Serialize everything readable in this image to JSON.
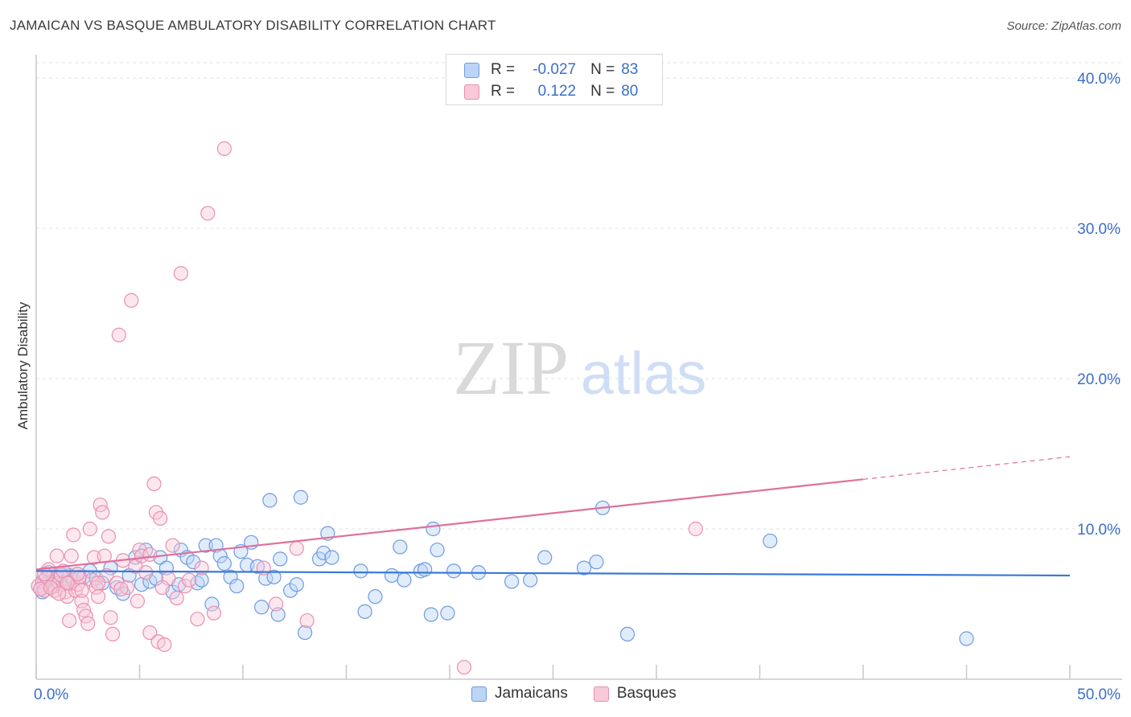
{
  "title": "JAMAICAN VS BASQUE AMBULATORY DISABILITY CORRELATION CHART",
  "source": "Source: ZipAtlas.com",
  "watermark": {
    "zip": "ZIP",
    "atlas": "atlas"
  },
  "legend": {
    "r_label": "R =",
    "n_label": "N =",
    "rows": [
      {
        "r": "-0.027",
        "n": "83",
        "color": "#6e9be0"
      },
      {
        "r": "0.122",
        "n": "80",
        "color": "#ea8fb0"
      }
    ]
  },
  "bottom_legend": [
    "Jamaicans",
    "Basques"
  ],
  "chart_data": {
    "type": "scatter",
    "title": "JAMAICAN VS BASQUE AMBULATORY DISABILITY CORRELATION CHART",
    "xlabel": "",
    "ylabel": "Ambulatory Disability",
    "xlim": [
      0,
      50
    ],
    "ylim": [
      0,
      40
    ],
    "x_tick_labels": [
      "0.0%",
      "50.0%"
    ],
    "y_tick_labels": [
      "10.0%",
      "20.0%",
      "30.0%",
      "40.0%"
    ],
    "y_ticks": [
      10,
      20,
      30,
      40
    ],
    "grid": "horizontal dashed",
    "legend_placement": "top-center",
    "series": [
      {
        "name": "Jamaicans",
        "color": "#6e9be0",
        "trend": {
          "x": [
            0,
            50
          ],
          "y": [
            7.2,
            6.9
          ]
        },
        "points": [
          [
            0.2,
            6.0
          ],
          [
            0.4,
            6.6
          ],
          [
            0.5,
            6.4
          ],
          [
            0.6,
            7.1
          ],
          [
            0.8,
            6.8
          ],
          [
            0.9,
            6.2
          ],
          [
            1.0,
            6.7
          ],
          [
            1.2,
            7.0
          ],
          [
            1.4,
            6.5
          ],
          [
            1.6,
            6.9
          ],
          [
            1.8,
            6.6
          ],
          [
            2.0,
            7.0
          ],
          [
            2.3,
            6.8
          ],
          [
            2.6,
            7.2
          ],
          [
            2.9,
            6.7
          ],
          [
            3.2,
            6.4
          ],
          [
            3.6,
            7.4
          ],
          [
            3.9,
            6.1
          ],
          [
            4.2,
            5.7
          ],
          [
            4.5,
            6.9
          ],
          [
            4.8,
            8.1
          ],
          [
            5.1,
            6.3
          ],
          [
            5.3,
            8.6
          ],
          [
            5.5,
            6.5
          ],
          [
            5.8,
            6.7
          ],
          [
            6.0,
            8.1
          ],
          [
            6.3,
            7.4
          ],
          [
            6.6,
            5.8
          ],
          [
            6.9,
            6.3
          ],
          [
            7.0,
            8.6
          ],
          [
            7.3,
            8.1
          ],
          [
            7.6,
            7.8
          ],
          [
            7.8,
            6.4
          ],
          [
            8.0,
            6.6
          ],
          [
            8.2,
            8.9
          ],
          [
            8.5,
            5.0
          ],
          [
            8.7,
            8.9
          ],
          [
            8.9,
            8.2
          ],
          [
            9.1,
            7.7
          ],
          [
            9.4,
            6.8
          ],
          [
            9.7,
            6.2
          ],
          [
            9.9,
            8.5
          ],
          [
            10.2,
            7.6
          ],
          [
            10.4,
            9.1
          ],
          [
            10.7,
            7.5
          ],
          [
            10.9,
            4.8
          ],
          [
            11.1,
            6.7
          ],
          [
            11.3,
            11.9
          ],
          [
            11.5,
            6.8
          ],
          [
            11.7,
            4.3
          ],
          [
            11.8,
            8.0
          ],
          [
            12.3,
            5.9
          ],
          [
            12.6,
            6.3
          ],
          [
            12.8,
            12.1
          ],
          [
            13.0,
            3.1
          ],
          [
            13.7,
            8.0
          ],
          [
            13.9,
            8.4
          ],
          [
            14.1,
            9.7
          ],
          [
            14.3,
            8.1
          ],
          [
            15.7,
            7.2
          ],
          [
            15.9,
            4.5
          ],
          [
            16.4,
            5.5
          ],
          [
            17.2,
            6.9
          ],
          [
            17.6,
            8.8
          ],
          [
            17.8,
            6.6
          ],
          [
            18.6,
            7.2
          ],
          [
            18.8,
            7.3
          ],
          [
            19.1,
            4.3
          ],
          [
            19.2,
            10.0
          ],
          [
            19.4,
            8.6
          ],
          [
            19.9,
            4.4
          ],
          [
            20.2,
            7.2
          ],
          [
            21.4,
            7.1
          ],
          [
            23.0,
            6.5
          ],
          [
            23.9,
            6.6
          ],
          [
            24.6,
            8.1
          ],
          [
            26.5,
            7.4
          ],
          [
            27.1,
            7.8
          ],
          [
            27.4,
            11.4
          ],
          [
            28.6,
            3.0
          ],
          [
            35.5,
            9.2
          ],
          [
            45.0,
            2.7
          ],
          [
            0.3,
            5.8
          ]
        ]
      },
      {
        "name": "Basques",
        "color": "#ea8fb0",
        "trend": {
          "x": [
            0,
            40
          ],
          "y": [
            7.3,
            13.3
          ],
          "dashed_extension": {
            "x": [
              40,
              50
            ],
            "y": [
              13.3,
              14.8
            ]
          }
        },
        "points": [
          [
            0.1,
            6.2
          ],
          [
            0.3,
            6.5
          ],
          [
            0.4,
            5.9
          ],
          [
            0.5,
            6.8
          ],
          [
            0.6,
            7.3
          ],
          [
            0.8,
            6.3
          ],
          [
            0.9,
            5.9
          ],
          [
            1.0,
            8.2
          ],
          [
            1.1,
            6.4
          ],
          [
            1.2,
            6.9
          ],
          [
            1.3,
            7.2
          ],
          [
            1.4,
            5.8
          ],
          [
            1.5,
            5.5
          ],
          [
            1.6,
            6.4
          ],
          [
            1.7,
            8.2
          ],
          [
            1.8,
            9.6
          ],
          [
            1.9,
            5.9
          ],
          [
            2.0,
            6.3
          ],
          [
            2.1,
            6.8
          ],
          [
            2.2,
            5.2
          ],
          [
            2.3,
            4.6
          ],
          [
            2.4,
            4.2
          ],
          [
            2.5,
            3.7
          ],
          [
            2.6,
            10.0
          ],
          [
            2.7,
            6.6
          ],
          [
            2.8,
            8.1
          ],
          [
            2.9,
            6.1
          ],
          [
            3.0,
            5.5
          ],
          [
            3.1,
            11.6
          ],
          [
            3.2,
            11.1
          ],
          [
            3.3,
            8.2
          ],
          [
            3.4,
            6.9
          ],
          [
            3.5,
            9.5
          ],
          [
            3.6,
            4.1
          ],
          [
            3.7,
            3.0
          ],
          [
            3.9,
            6.4
          ],
          [
            4.0,
            22.9
          ],
          [
            4.2,
            7.9
          ],
          [
            4.4,
            6.1
          ],
          [
            4.6,
            25.2
          ],
          [
            4.8,
            7.5
          ],
          [
            4.9,
            5.2
          ],
          [
            5.0,
            8.6
          ],
          [
            5.1,
            8.2
          ],
          [
            5.3,
            7.1
          ],
          [
            5.5,
            3.1
          ],
          [
            5.7,
            13.0
          ],
          [
            5.8,
            11.1
          ],
          [
            5.9,
            2.5
          ],
          [
            6.0,
            10.7
          ],
          [
            6.2,
            2.3
          ],
          [
            6.4,
            6.7
          ],
          [
            6.6,
            8.9
          ],
          [
            6.8,
            5.4
          ],
          [
            7.0,
            27.0
          ],
          [
            7.2,
            6.2
          ],
          [
            7.4,
            6.6
          ],
          [
            7.8,
            4.0
          ],
          [
            8.0,
            7.4
          ],
          [
            8.3,
            31.0
          ],
          [
            8.6,
            4.4
          ],
          [
            9.1,
            35.3
          ],
          [
            11.0,
            7.4
          ],
          [
            11.6,
            5.0
          ],
          [
            12.6,
            8.7
          ],
          [
            13.1,
            3.9
          ],
          [
            20.7,
            0.8
          ],
          [
            31.9,
            10.0
          ],
          [
            0.2,
            6.0
          ],
          [
            0.7,
            6.1
          ],
          [
            1.5,
            6.4
          ],
          [
            2.2,
            5.9
          ],
          [
            1.1,
            5.7
          ],
          [
            3.0,
            6.4
          ],
          [
            4.1,
            6.0
          ],
          [
            2.0,
            7.0
          ],
          [
            1.6,
            3.9
          ],
          [
            0.4,
            7.0
          ],
          [
            6.1,
            6.1
          ],
          [
            5.5,
            8.3
          ]
        ]
      }
    ]
  }
}
